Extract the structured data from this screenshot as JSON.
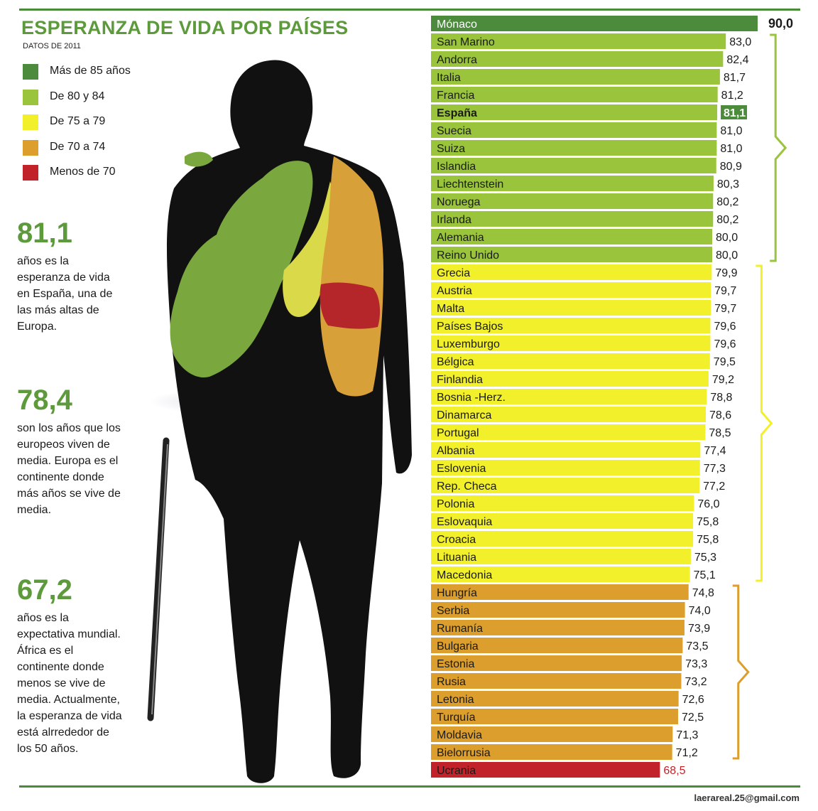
{
  "header": {
    "title": "ESPERANZA DE VIDA POR PAÍSES",
    "subtitle": "DATOS DE 2011"
  },
  "legend": [
    {
      "label": "Más de 85 años",
      "color": "#4b8b3b"
    },
    {
      "label": "De 80 y 84",
      "color": "#9ac43c"
    },
    {
      "label": "De 75 a 79",
      "color": "#f2f02a"
    },
    {
      "label": "De 70 a 74",
      "color": "#dc9e2c"
    },
    {
      "label": "Menos de 70",
      "color": "#c2232a"
    }
  ],
  "stats": [
    {
      "value": "81,1",
      "text": "años es la esperanza de vida en España, una de las más altas de Europa."
    },
    {
      "value": "78,4",
      "text": "son los años que los europeos viven de media. Europa es el continente donde más años se vive de media."
    },
    {
      "value": "67,2",
      "text": "años es la expectativa mundial. África es el continente donde menos se vive de media. Actualmente, la esperanza de vida está alrrededor de los 50 años."
    }
  ],
  "chart_data": {
    "type": "bar",
    "orientation": "horizontal",
    "title": "ESPERANZA DE VIDA POR PAÍSES",
    "subtitle": "DATOS DE 2011",
    "highlight": "España",
    "categories": [
      "Mónaco",
      "San Marino",
      "Andorra",
      "Italia",
      "Francia",
      "España",
      "Suecia",
      "Suiza",
      "Islandia",
      "Liechtenstein",
      "Noruega",
      "Irlanda",
      "Alemania",
      "Reino Unido",
      "Grecia",
      "Austria",
      "Malta",
      "Países Bajos",
      "Luxemburgo",
      "Bélgica",
      "Finlandia",
      "Bosnia -Herz.",
      "Dinamarca",
      "Portugal",
      "Albania",
      "Eslovenia",
      "Rep. Checa",
      "Polonia",
      "Eslovaquia",
      "Croacia",
      "Lituania",
      "Macedonia",
      "Hungría",
      "Serbia",
      "Rumanía",
      "Bulgaria",
      "Estonia",
      "Rusia",
      "Letonia",
      "Turquía",
      "Moldavia",
      "Bielorrusia",
      "Ucrania"
    ],
    "values": [
      90.0,
      83.0,
      82.4,
      81.7,
      81.2,
      81.1,
      81.0,
      81.0,
      80.9,
      80.3,
      80.2,
      80.2,
      80.0,
      80.0,
      79.9,
      79.7,
      79.7,
      79.6,
      79.6,
      79.5,
      79.2,
      78.8,
      78.6,
      78.5,
      77.4,
      77.3,
      77.2,
      76.0,
      75.8,
      75.8,
      75.3,
      75.1,
      74.8,
      74.0,
      73.9,
      73.5,
      73.3,
      73.2,
      72.6,
      72.5,
      71.3,
      71.2,
      68.5
    ],
    "value_labels": [
      "90,0",
      "83,0",
      "82,4",
      "81,7",
      "81,2",
      "81,1",
      "81,0",
      "81,0",
      "80,9",
      "80,3",
      "80,2",
      "80,2",
      "80,0",
      "80,0",
      "79,9",
      "79,7",
      "79,7",
      "79,6",
      "79,6",
      "79,5",
      "79,2",
      "78,8",
      "78,6",
      "78,5",
      "77,4",
      "77,3",
      "77,2",
      "76,0",
      "75,8",
      "75,8",
      "75,3",
      "75,1",
      "74,8",
      "74,0",
      "73,9",
      "73,5",
      "73,3",
      "73,2",
      "72,6",
      "72,5",
      "71,3",
      "71,2",
      "68,5"
    ],
    "value_axis_range": [
      0,
      90
    ]
  },
  "footer": {
    "email": "laerareal.25@gmail.com"
  }
}
